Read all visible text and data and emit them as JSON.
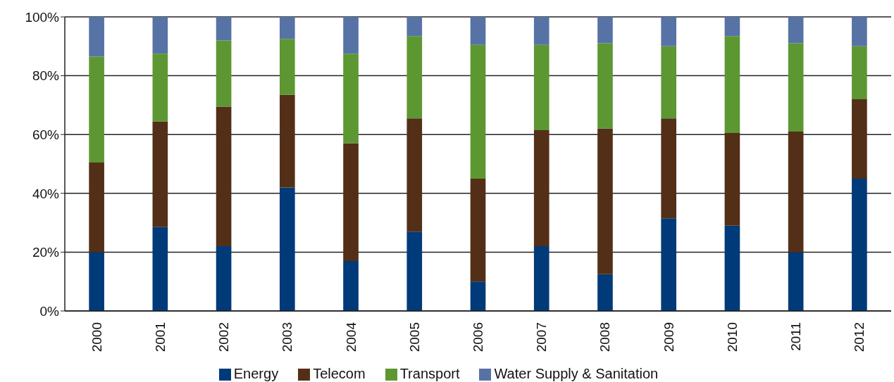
{
  "chart_data": {
    "type": "bar",
    "stacked": true,
    "categories": [
      "2000",
      "2001",
      "2002",
      "2003",
      "2004",
      "2005",
      "2006",
      "2007",
      "2008",
      "2009",
      "2010",
      "2011",
      "2012"
    ],
    "series": [
      {
        "name": "Energy",
        "color": "#003a78",
        "values": [
          20,
          28.5,
          22,
          42,
          17,
          27,
          10,
          22,
          12.5,
          31.5,
          29,
          20,
          45
        ]
      },
      {
        "name": "Telecom",
        "color": "#532f17",
        "values": [
          30.5,
          36,
          47.5,
          31.5,
          40,
          38.5,
          35,
          39.5,
          49.5,
          34,
          31.5,
          41,
          27
        ]
      },
      {
        "name": "Transport",
        "color": "#5d9732",
        "values": [
          36,
          23,
          22.5,
          19,
          30.5,
          28,
          45.5,
          29,
          29,
          24.5,
          33,
          30,
          18
        ]
      },
      {
        "name": "Water Supply & Sanitation",
        "color": "#5773a6",
        "values": [
          13.5,
          12.5,
          8,
          7.5,
          12.5,
          6.5,
          9.5,
          9.5,
          9,
          10,
          6.5,
          9,
          10
        ]
      }
    ],
    "ylim": [
      0,
      100
    ],
    "yticks": [
      {
        "value": 0,
        "label": "0%"
      },
      {
        "value": 20,
        "label": "20%"
      },
      {
        "value": 40,
        "label": "40%"
      },
      {
        "value": 60,
        "label": "60%"
      },
      {
        "value": 80,
        "label": "80%"
      },
      {
        "value": 100,
        "label": "100%"
      }
    ],
    "grid": "y",
    "legend": "bottom"
  }
}
